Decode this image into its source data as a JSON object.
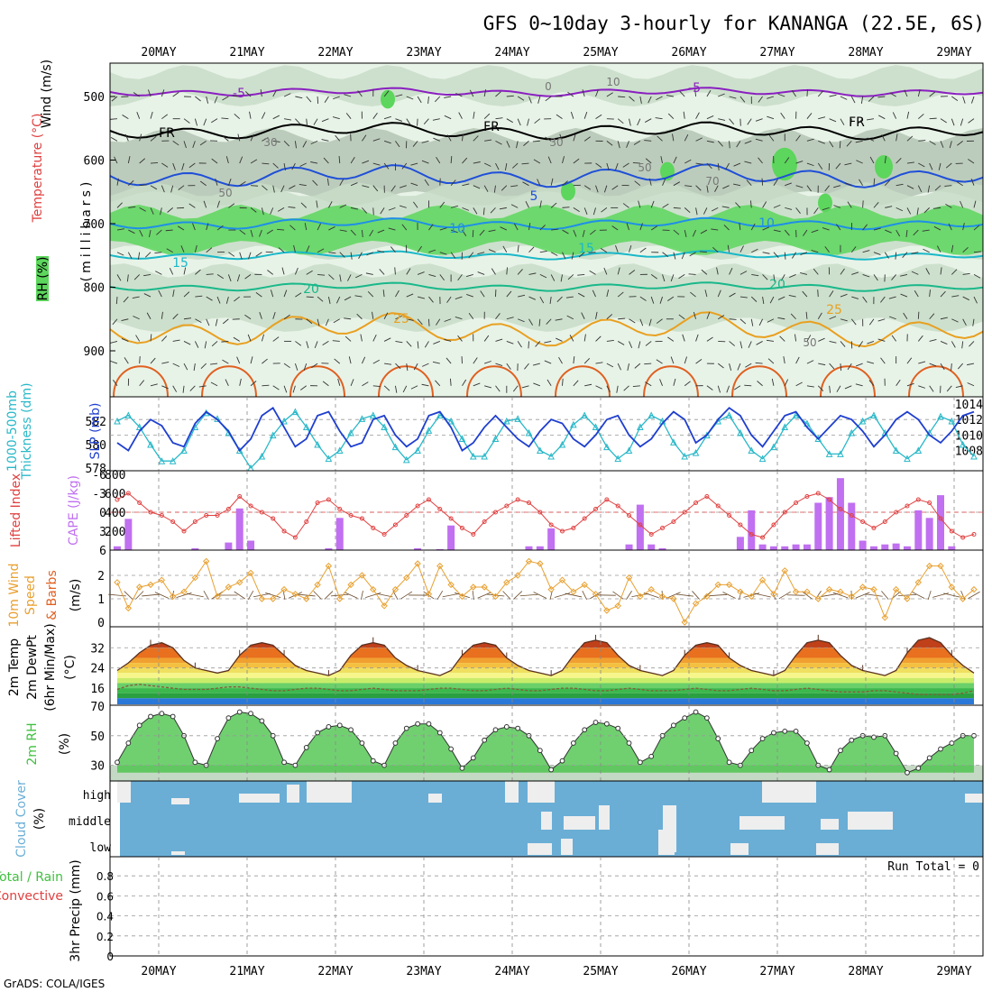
{
  "title": "GFS 0~10day 3-hourly for KANANGA (22.5E, 6S)",
  "credit": "GrADS: COLA/IGES",
  "dates": [
    "20MAY",
    "21MAY",
    "22MAY",
    "23MAY",
    "24MAY",
    "25MAY",
    "26MAY",
    "27MAY",
    "28MAY",
    "29MAY"
  ],
  "colors": {
    "rh_light": "#e8f3e8",
    "rh_mid": "#c8dcc8",
    "rh_gray": "#b4c4b4",
    "rh_green": "#5cd65c",
    "t_minus5": "#8a1fc0",
    "t_fr": "#000000",
    "t_5": "#1f4fd8",
    "t_10": "#1f8fe8",
    "t_15": "#19b8c8",
    "t_20": "#19b88a",
    "t_25": "#e8a020",
    "t_30": "#e06020",
    "slp": "#1f3fcf",
    "thick": "#29b8c8",
    "lifted": "#e04040",
    "cape": "#c070f0",
    "wind": "#e8a030",
    "cloud": "#6aaed6",
    "cloud_gap": "#eeeeee",
    "rh2m": "#40c040"
  },
  "panels": {
    "upper": {
      "ylabels": [
        "500",
        "600",
        "700",
        "800",
        "900"
      ],
      "side_labels": [
        "Wind (m/s)",
        "Temperature (°C)",
        "RH (%)",
        "(millibars)"
      ],
      "contour_labels": {
        "minus5": "-5",
        "fr": "FR",
        "five": "5",
        "ten": "10",
        "fifteen": "15",
        "twenty": "20",
        "twentyfive": "25",
        "rh_ten": "10",
        "rh_thirty": "30",
        "rh_fifty": "50",
        "rh_seventy": "70",
        "rh_zero": "0"
      }
    },
    "slp": {
      "left_ticks": [
        "582",
        "580",
        "578"
      ],
      "right_ticks": [
        "1014",
        "1012",
        "1010",
        "1008"
      ],
      "labels": [
        "1000-500mb",
        "Thickness (dm)",
        "SLP (mb)"
      ]
    },
    "cape": {
      "left_ticks": [
        "-6",
        "-3",
        "0",
        "3",
        "6"
      ],
      "right_ticks": [
        "800",
        "600",
        "400",
        "200"
      ],
      "labels": [
        "Lifted Index",
        "CAPE (J/kg)"
      ]
    },
    "wind10m": {
      "ticks": [
        "2",
        "1",
        "0"
      ],
      "labels": [
        "10m Wind",
        "Speed",
        "& Barbs",
        "(m/s)"
      ]
    },
    "temp2m": {
      "ticks": [
        "32",
        "24",
        "16"
      ],
      "labels": [
        "2m Temp",
        "2m DewPt",
        "(6hr Min/Max)",
        "(°C)"
      ]
    },
    "rh2m": {
      "ticks": [
        "70",
        "50",
        "30"
      ],
      "labels": [
        "2m RH",
        "(%)"
      ]
    },
    "cloud": {
      "ticks": [
        "high",
        "middle",
        "low"
      ],
      "labels": [
        "Cloud Cover",
        "(%)"
      ]
    },
    "precip": {
      "ticks": [
        "0.8",
        "0.6",
        "0.4",
        "0.2",
        "0"
      ],
      "run_total": "Run Total = 0",
      "labels": [
        "Total / Rain",
        "Convective",
        "3hr Precip (mm)"
      ]
    }
  },
  "chart_data": [
    {
      "type": "line",
      "panel": "SLP / 1000-500mb thickness",
      "series": [
        {
          "name": "SLP (mb)",
          "values": [
            1009.0,
            1008.0,
            1010.5,
            1012.0,
            1011.2,
            1009.0,
            1008.5,
            1011.5,
            1013.0,
            1012.0,
            1010.5,
            1008.0,
            1009.5,
            1012.5,
            1013.5,
            1011.0,
            1008.5,
            1009.5,
            1012.5,
            1013.0,
            1010.5,
            1008.5,
            1009.0,
            1012.0,
            1012.5,
            1010.0,
            1008.5,
            1009.5,
            1012.5,
            1013.0,
            1011.0,
            1008.0,
            1009.0,
            1011.0,
            1012.5,
            1011.0,
            1009.5,
            1008.5,
            1010.5,
            1012.0,
            1011.5,
            1009.5,
            1008.5,
            1010.0,
            1012.0,
            1012.5,
            1010.0,
            1008.5,
            1009.5,
            1011.5,
            1013.0,
            1012.0,
            1009.0,
            1010.0,
            1012.0,
            1013.5,
            1012.5,
            1010.0,
            1008.5,
            1010.5,
            1012.5,
            1013.0,
            1011.0,
            1009.5,
            1011.0,
            1012.5,
            1012.0,
            1010.5,
            1008.5,
            1010.0,
            1012.0,
            1013.0,
            1012.0,
            1010.0,
            1009.0,
            1010.5,
            1012.5,
            1013.0
          ]
        },
        {
          "name": "1000-500mb Thickness (dm)",
          "values": [
            582.0,
            582.5,
            581.5,
            580.0,
            578.6,
            578.6,
            579.5,
            581.5,
            582.7,
            582.2,
            581.0,
            579.5,
            578.0,
            579.0,
            580.8,
            582.0,
            582.8,
            581.5,
            580.0,
            578.8,
            579.5,
            581.0,
            582.2,
            582.5,
            581.5,
            579.8,
            578.7,
            579.5,
            581.2,
            582.5,
            582.0,
            580.5,
            579.0,
            579.0,
            580.5,
            582.0,
            582.2,
            581.0,
            579.5,
            579.0,
            580.0,
            581.7,
            582.5,
            581.5,
            579.8,
            578.8,
            579.5,
            581.5,
            582.5,
            582.0,
            580.2,
            579.0,
            579.3,
            580.8,
            582.0,
            582.5,
            581.0,
            579.5,
            578.8,
            579.8,
            581.5,
            582.5,
            581.8,
            580.5,
            579.2,
            579.2,
            581.0,
            582.0,
            582.5,
            581.0,
            579.5,
            578.8,
            579.5,
            581.0,
            582.4,
            582.0,
            580.0,
            579.0
          ]
        }
      ]
    },
    {
      "type": "bar",
      "panel": "CAPE (J/kg) with Lifted Index line",
      "series": [
        {
          "name": "CAPE (J/kg)",
          "values": [
            40,
            330,
            0,
            0,
            0,
            0,
            0,
            20,
            0,
            0,
            80,
            440,
            100,
            0,
            0,
            0,
            0,
            0,
            0,
            20,
            340,
            0,
            0,
            0,
            0,
            0,
            0,
            20,
            0,
            10,
            260,
            0,
            0,
            0,
            0,
            0,
            0,
            40,
            40,
            230,
            0,
            0,
            0,
            0,
            0,
            0,
            60,
            480,
            60,
            20,
            0,
            0,
            0,
            0,
            0,
            0,
            140,
            420,
            60,
            40,
            40,
            60,
            60,
            500,
            560,
            760,
            500,
            100,
            40,
            60,
            70,
            40,
            420,
            340,
            580,
            40,
            0,
            0
          ]
        },
        {
          "name": "Lifted Index",
          "values": [
            -2.0,
            -3.0,
            -1.5,
            0.0,
            0.5,
            1.5,
            3.0,
            1.5,
            0.5,
            0.5,
            -0.5,
            -2.5,
            -1.0,
            0.0,
            1.0,
            3.0,
            4.0,
            1.5,
            -1.5,
            -2.0,
            -0.5,
            0.5,
            1.0,
            2.5,
            3.5,
            2.0,
            0.5,
            -1.0,
            -2.0,
            -0.5,
            1.0,
            2.5,
            3.5,
            1.5,
            0.0,
            -1.0,
            -2.0,
            -1.5,
            0.0,
            2.0,
            3.0,
            2.5,
            1.0,
            -0.5,
            -2.0,
            -1.0,
            0.5,
            2.0,
            3.5,
            2.5,
            1.5,
            0.0,
            -1.5,
            -2.5,
            -1.0,
            0.5,
            2.0,
            3.5,
            4.0,
            2.0,
            0.0,
            -1.5,
            -2.5,
            -3.0,
            -2.0,
            -0.5,
            0.5,
            1.5,
            2.5,
            1.5,
            0.0,
            -1.0,
            -2.0,
            -1.5,
            1.0,
            3.0,
            4.0,
            3.5
          ]
        }
      ]
    },
    {
      "type": "line",
      "panel": "10m Wind Speed (m/s)",
      "series": [
        {
          "name": "10m Wind Speed",
          "values": [
            1.7,
            0.6,
            1.5,
            1.6,
            1.8,
            1.1,
            1.3,
            1.9,
            2.6,
            1.1,
            1.5,
            1.7,
            2.1,
            1.0,
            1.0,
            1.4,
            1.2,
            1.0,
            1.6,
            2.4,
            1.0,
            1.6,
            2.0,
            1.4,
            0.7,
            1.4,
            1.9,
            2.5,
            1.2,
            2.4,
            1.6,
            1.1,
            1.5,
            1.5,
            1.1,
            1.7,
            2.0,
            2.6,
            2.5,
            1.4,
            1.8,
            1.3,
            1.6,
            1.2,
            0.5,
            0.7,
            1.9,
            1.1,
            1.4,
            1.1,
            1.0,
            0.0,
            0.8,
            1.1,
            1.6,
            1.6,
            1.3,
            1.1,
            1.8,
            1.2,
            2.2,
            1.3,
            1.3,
            1.0,
            1.4,
            1.3,
            1.1,
            1.5,
            1.4,
            0.2,
            1.4,
            1.0,
            1.7,
            2.4,
            2.4,
            1.5,
            1.0,
            1.4
          ]
        }
      ]
    },
    {
      "type": "area",
      "panel": "2m Temp / 2m DewPt (°C)",
      "series": [
        {
          "name": "2m Temp",
          "values": [
            23,
            26,
            30,
            33,
            34,
            32,
            27,
            24,
            23,
            22,
            23,
            29,
            33,
            34,
            33,
            29,
            25,
            23,
            22,
            21,
            23,
            29,
            33,
            34,
            33,
            28,
            25,
            23,
            22,
            21,
            23,
            29,
            33,
            34,
            33,
            28,
            25,
            23,
            22,
            21,
            23,
            29,
            34,
            35,
            34,
            29,
            25,
            23,
            22,
            21,
            23,
            29,
            33,
            34,
            33,
            28,
            25,
            23,
            22,
            21,
            23,
            29,
            34,
            35,
            34,
            29,
            25,
            23,
            22,
            21,
            23,
            30,
            35,
            36,
            34,
            29,
            25,
            22
          ]
        },
        {
          "name": "2m DewPt",
          "values": [
            15.5,
            17,
            17.5,
            17,
            16.5,
            16,
            15.5,
            15.5,
            15.5,
            16,
            16.5,
            16.5,
            16,
            15.5,
            15,
            15,
            15.5,
            16,
            16,
            15.5,
            15,
            15,
            15.5,
            16,
            15.5,
            15,
            15,
            15,
            15.5,
            16,
            16,
            15.5,
            15,
            15,
            15.5,
            16,
            15.5,
            15,
            15,
            15.5,
            16,
            16,
            15.5,
            15,
            15,
            15.5,
            16,
            15.5,
            15,
            15,
            15,
            15.5,
            16,
            15.5,
            15,
            15,
            15.5,
            16,
            15.5,
            15,
            15,
            15.5,
            16,
            15.5,
            15,
            14.5,
            14.5,
            14.5,
            15,
            15,
            14.5,
            14,
            13.5,
            13.5,
            13.5,
            13.5,
            14,
            15
          ]
        }
      ]
    },
    {
      "type": "area",
      "panel": "2m RH (%)",
      "series": [
        {
          "name": "2m RH",
          "values": [
            32,
            45,
            57,
            63,
            65,
            63,
            50,
            32,
            30,
            48,
            62,
            66,
            65,
            60,
            50,
            32,
            30,
            42,
            52,
            56,
            57,
            54,
            45,
            33,
            30,
            45,
            55,
            58,
            58,
            52,
            41,
            28,
            35,
            47,
            54,
            56,
            55,
            50,
            40,
            27,
            33,
            45,
            54,
            59,
            58,
            55,
            45,
            32,
            36,
            50,
            57,
            62,
            66,
            62,
            48,
            32,
            30,
            40,
            48,
            52,
            53,
            53,
            45,
            30,
            27,
            40,
            47,
            50,
            49,
            50,
            38,
            25,
            28,
            35,
            41,
            45,
            50,
            50
          ]
        }
      ]
    },
    {
      "type": "bar",
      "panel": "3hr Precip (mm)",
      "series": [
        {
          "name": "Total / Rain",
          "values": [
            0,
            0,
            0,
            0,
            0,
            0,
            0,
            0,
            0,
            0
          ]
        },
        {
          "name": "Convective",
          "values": [
            0,
            0,
            0,
            0,
            0,
            0,
            0,
            0,
            0,
            0
          ]
        }
      ]
    }
  ]
}
